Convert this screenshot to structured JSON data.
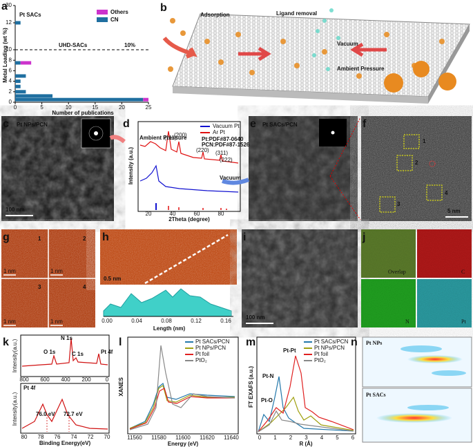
{
  "panel_a": {
    "label": "a",
    "title": "Pt SACs",
    "legend": [
      "Others",
      "CN"
    ],
    "colors": [
      "#cc33cc",
      "#1f6fa0"
    ],
    "threshold": 10,
    "threshold_label": "UHD-SACs",
    "threshold_value_label": "10%",
    "ylabel": "Metal Loading (wt %)",
    "xlabel": "Number of publications",
    "loading": [
      0.5,
      1.2,
      2,
      3,
      4,
      5,
      7.5,
      12
    ],
    "cn": [
      24,
      7,
      2,
      1,
      1,
      2,
      1,
      1
    ],
    "others": [
      1,
      0,
      0,
      0,
      0,
      0,
      2,
      0
    ],
    "xlim": [
      0,
      25
    ],
    "xticks": [
      0,
      5,
      10,
      15,
      20,
      25
    ],
    "yticks": [
      0,
      2,
      4,
      6,
      8,
      10,
      12,
      30
    ]
  },
  "panel_b": {
    "label": "b",
    "texts": [
      "Adsorption",
      "Ligand removal",
      "Vacuum",
      "Ambient Pressure"
    ]
  },
  "panel_c": {
    "label": "c",
    "title": "Pt NPs/PCN",
    "scale": "100 nm"
  },
  "panel_d": {
    "label": "d",
    "legend": [
      "Vacuum Pt",
      "Ar Pt"
    ],
    "ambient": "Ambient Pressure",
    "ref1": "Pt:PDF#87-0640",
    "ref2": "PCN:PDF#87-1526",
    "peaks": [
      "(111)",
      "(200)",
      "(220)",
      "(311)",
      "(222)"
    ],
    "vacuum": "Vacuum",
    "ylabel": "Intensity (a.u.)",
    "xlabel": "2Theta (degree)",
    "xticks": [
      "20",
      "40",
      "60",
      "80"
    ]
  },
  "panel_e": {
    "label": "e",
    "title": "Pt SACs/PCN"
  },
  "panel_f": {
    "label": "f",
    "regions": [
      "1",
      "2",
      "3",
      "4"
    ],
    "scale": "5 nm"
  },
  "panel_g": {
    "label": "g",
    "regions": [
      "1",
      "2",
      "3",
      "4"
    ],
    "scales": [
      "1 nm",
      "1 nm",
      "1 nm",
      "1 nm"
    ]
  },
  "panel_h": {
    "label": "h",
    "scale": "0.5 nm",
    "xlabel": "Length (nm)",
    "xticks": [
      "0.00",
      "0.04",
      "0.08",
      "0.12",
      "0.16"
    ]
  },
  "panel_i": {
    "label": "i",
    "scale": "100 nm"
  },
  "panel_j": {
    "label": "j",
    "maps": [
      "Overlap",
      "C",
      "N",
      "Pt"
    ]
  },
  "panel_k": {
    "label": "k",
    "peaks": [
      "N 1s",
      "O 1s",
      "C 1s",
      "Pt 4f"
    ],
    "ylabel_top": "Intensity(a.u.)",
    "xticks_top": [
      "800",
      "600",
      "400",
      "200",
      "0"
    ],
    "title_bottom": "Pt 4f",
    "energies": [
      "76.0 eV",
      "72.7 eV"
    ],
    "ylabel_bottom": "Intensity(a.u.)",
    "xticks_bottom": [
      "80",
      "78",
      "76",
      "74",
      "72",
      "70"
    ],
    "xlabel": "Binding Energy(eV)"
  },
  "panel_l": {
    "label": "l",
    "legend": [
      "Pt SACs/PCN",
      "Pt NPs/PCN",
      "Pt foil",
      "PtO₂"
    ],
    "ylabel": "XANES",
    "xlabel": "Energy (eV)",
    "xticks": [
      "11560",
      "11580",
      "11600",
      "11620",
      "11640"
    ]
  },
  "panel_m": {
    "label": "m",
    "legend": [
      "Pt SACs/PCN",
      "Pt NPs/PCN",
      "Pt foil",
      "PtO₂"
    ],
    "peaks": [
      "Pt-Pt",
      "Pt-N",
      "Pt-O"
    ],
    "ylabel": "FT EXAFS (a.u.)",
    "xlabel": "R (Å)",
    "xticks": [
      "0",
      "1",
      "2",
      "3",
      "4",
      "5",
      "6"
    ]
  },
  "panel_n": {
    "label": "n",
    "titles": [
      "Pt NPs",
      "Pt SACs"
    ]
  }
}
